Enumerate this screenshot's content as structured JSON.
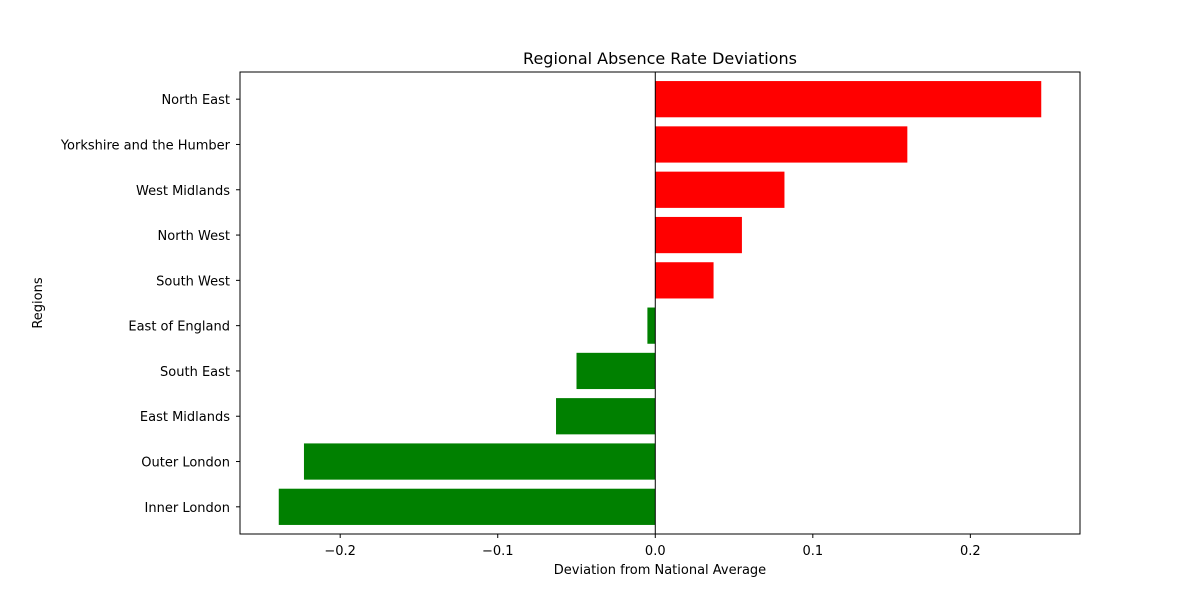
{
  "chart_data": {
    "type": "bar",
    "orientation": "horizontal",
    "title": "Regional Absence Rate Deviations",
    "xlabel": "Deviation from National Average",
    "ylabel": "Regions",
    "categories": [
      "Inner London",
      "Outer London",
      "East Midlands",
      "South East",
      "East of England",
      "South West",
      "North West",
      "West Midlands",
      "Yorkshire and the Humber",
      "North East"
    ],
    "values": [
      -0.239,
      -0.223,
      -0.063,
      -0.05,
      -0.005,
      0.037,
      0.055,
      0.082,
      0.16,
      0.245
    ],
    "xlim": [
      -0.2636,
      0.2696
    ],
    "xticks": [
      -0.2,
      -0.1,
      0.0,
      0.1,
      0.2
    ],
    "xtick_labels": [
      "−0.2",
      "−0.1",
      "0.0",
      "0.1",
      "0.2"
    ],
    "colors": {
      "positive": "#ff0000",
      "negative": "#008000",
      "frame": "#000000"
    },
    "grid": false,
    "zero_line": true
  }
}
